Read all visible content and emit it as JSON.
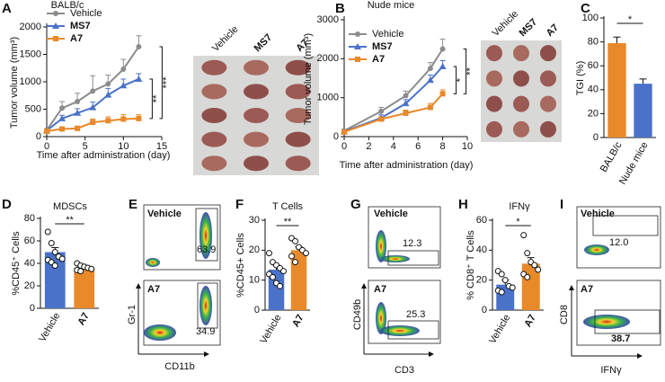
{
  "panel_labels": [
    "A",
    "B",
    "C",
    "D",
    "E",
    "F",
    "G",
    "H",
    "I"
  ],
  "chart_data": [
    {
      "type": "line",
      "title": "BALB/c",
      "xlabel": "Time after administration (day)",
      "ylabel": "Tumor volume (mm³)",
      "x": [
        0,
        2,
        4,
        6,
        8,
        10,
        12
      ],
      "xlim": [
        0,
        15
      ],
      "xticks": [
        0,
        5,
        10,
        15
      ],
      "ylim": [
        0,
        2000
      ],
      "yticks": [
        0,
        500,
        1000,
        1500,
        2000
      ],
      "series": [
        {
          "name": "Vehicle",
          "color": "#8c8c8c",
          "values": [
            120,
            520,
            640,
            830,
            960,
            1230,
            1640
          ],
          "errors": [
            20,
            120,
            150,
            280,
            160,
            180,
            200
          ]
        },
        {
          "name": "MS7",
          "color": "#4a72c8",
          "values": [
            110,
            330,
            430,
            530,
            760,
            930,
            1050
          ],
          "errors": [
            15,
            60,
            80,
            100,
            120,
            120,
            100
          ]
        },
        {
          "name": "A7",
          "color": "#e8892a",
          "values": [
            100,
            140,
            150,
            260,
            290,
            320,
            330
          ],
          "errors": [
            10,
            30,
            40,
            60,
            70,
            80,
            70
          ]
        }
      ],
      "significance": [
        "**",
        "***"
      ],
      "photo_labels": [
        "Vehicle",
        "MS7",
        "A7"
      ]
    },
    {
      "type": "line",
      "title": "Nude mice",
      "xlabel": "Time after administration (day)",
      "ylabel": "Tumor volume (mm³)",
      "x": [
        0,
        3,
        5,
        7,
        8
      ],
      "xlim": [
        0,
        10
      ],
      "xticks": [
        0,
        2,
        4,
        6,
        8,
        10
      ],
      "ylim": [
        0,
        3000
      ],
      "yticks": [
        0,
        1000,
        2000,
        3000
      ],
      "series": [
        {
          "name": "Vehicle",
          "color": "#8c8c8c",
          "values": [
            150,
            650,
            1050,
            1750,
            2250
          ],
          "errors": [
            40,
            100,
            120,
            150,
            250
          ]
        },
        {
          "name": "MS7",
          "color": "#4a72c8",
          "values": [
            130,
            480,
            850,
            1450,
            1800
          ],
          "errors": [
            30,
            80,
            100,
            130,
            150
          ]
        },
        {
          "name": "A7",
          "color": "#e8892a",
          "values": [
            120,
            450,
            600,
            750,
            1100
          ],
          "errors": [
            20,
            50,
            80,
            100,
            100
          ]
        }
      ],
      "significance": [
        "*",
        "**"
      ],
      "photo_labels": [
        "Vehicle",
        "MS7",
        "A7"
      ]
    },
    {
      "type": "bar",
      "ylabel": "TGI (%)",
      "categories": [
        "BALB/c",
        "Nude mice"
      ],
      "values": [
        79,
        45
      ],
      "errors": [
        5,
        4
      ],
      "colors": [
        "#e8892a",
        "#4a72c8"
      ],
      "ylim": [
        0,
        100
      ],
      "yticks": [
        0,
        20,
        40,
        60,
        80,
        100
      ],
      "significance": "*"
    },
    {
      "type": "bar",
      "title": "MDSCs",
      "ylabel": "%CD45⁺ Cells",
      "categories": [
        "Vehicle",
        "A7"
      ],
      "values": [
        50,
        36
      ],
      "errors": [
        4,
        2
      ],
      "colors": [
        "#4a72c8",
        "#e8892a"
      ],
      "ylim": [
        0,
        80
      ],
      "yticks": [
        0,
        20,
        40,
        60,
        80
      ],
      "significance": "**",
      "points": [
        [
          68,
          58,
          50,
          46,
          44,
          43,
          41,
          38
        ],
        [
          40,
          38,
          37,
          36,
          35,
          34,
          33
        ]
      ]
    },
    {
      "type": "bar",
      "title": "T Cells",
      "ylabel": "%CD45+ Cells",
      "categories": [
        "Vehicle",
        "A7"
      ],
      "values": [
        13.5,
        20
      ],
      "errors": [
        1.5,
        1.2
      ],
      "colors": [
        "#4a72c8",
        "#e8892a"
      ],
      "ylim": [
        0,
        30
      ],
      "yticks": [
        0,
        10,
        20,
        30
      ],
      "significance": "**",
      "points": [
        [
          19,
          16,
          15,
          14,
          13,
          12,
          11,
          9,
          8
        ],
        [
          24,
          23,
          21,
          20,
          19,
          18,
          16
        ]
      ]
    },
    {
      "type": "bar",
      "title": "IFNγ",
      "ylabel": "% CD8⁺ T Cells",
      "categories": [
        "Vehicle",
        "A7"
      ],
      "values": [
        17,
        31
      ],
      "errors": [
        3,
        4
      ],
      "colors": [
        "#4a72c8",
        "#e8892a"
      ],
      "ylim": [
        0,
        60
      ],
      "yticks": [
        0,
        20,
        40,
        60
      ],
      "significance": "*",
      "points": [
        [
          26,
          24,
          20,
          16,
          15,
          13,
          12
        ],
        [
          50,
          38,
          32,
          30,
          27,
          24,
          22
        ]
      ]
    }
  ],
  "flow_panels": [
    {
      "top_label": "Vehicle",
      "top_value": "63.9",
      "bottom_label": "A7",
      "bottom_value": "34.9",
      "ylabel": "Gr-1",
      "xlabel": "CD11b"
    },
    {
      "top_label": "Vehicle",
      "top_value": "12.3",
      "bottom_label": "A7",
      "bottom_value": "25.3",
      "ylabel": "CD49b",
      "xlabel": "CD3"
    },
    {
      "top_label": "Vehicle",
      "top_value": "12.0",
      "bottom_label": "A7",
      "bottom_value": "38.7",
      "ylabel": "CD8",
      "xlabel": "IFNγ"
    }
  ]
}
